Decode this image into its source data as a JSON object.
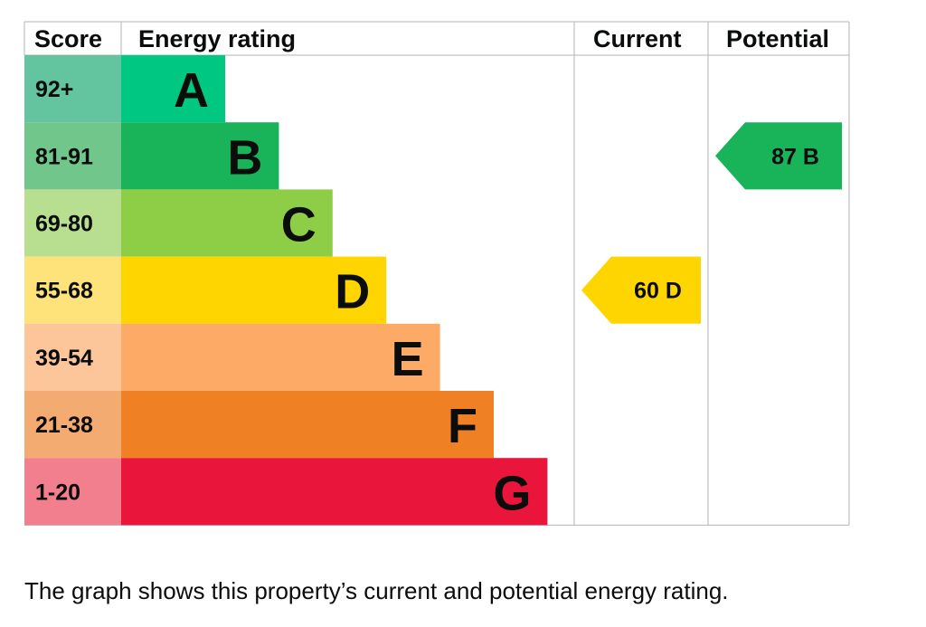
{
  "chart_data": {
    "type": "bar",
    "headers": {
      "score": "Score",
      "rating": "Energy rating",
      "current": "Current",
      "potential": "Potential"
    },
    "bands": [
      {
        "score": "92+",
        "letter": "A",
        "min": 92,
        "max": 100,
        "score_color": "#63c59f",
        "bar_color": "#00c781"
      },
      {
        "score": "81-91",
        "letter": "B",
        "min": 81,
        "max": 91,
        "score_color": "#71c68b",
        "bar_color": "#19b459"
      },
      {
        "score": "69-80",
        "letter": "C",
        "min": 69,
        "max": 80,
        "score_color": "#b8de90",
        "bar_color": "#8dce46"
      },
      {
        "score": "55-68",
        "letter": "D",
        "min": 55,
        "max": 68,
        "score_color": "#fee37a",
        "bar_color": "#ffd500"
      },
      {
        "score": "39-54",
        "letter": "E",
        "min": 39,
        "max": 54,
        "score_color": "#fdc59a",
        "bar_color": "#fcaa65"
      },
      {
        "score": "21-38",
        "letter": "F",
        "min": 21,
        "max": 38,
        "score_color": "#f4ab72",
        "bar_color": "#ef8023"
      },
      {
        "score": "1-20",
        "letter": "G",
        "min": 1,
        "max": 20,
        "score_color": "#f27f8e",
        "bar_color": "#e9153b"
      }
    ],
    "current": {
      "value": 60,
      "letter": "D",
      "label": "60  D",
      "color": "#ffd500"
    },
    "potential": {
      "value": 87,
      "letter": "B",
      "label": "87  B",
      "color": "#19b459"
    }
  },
  "caption": "The graph shows this property’s current and potential energy rating."
}
